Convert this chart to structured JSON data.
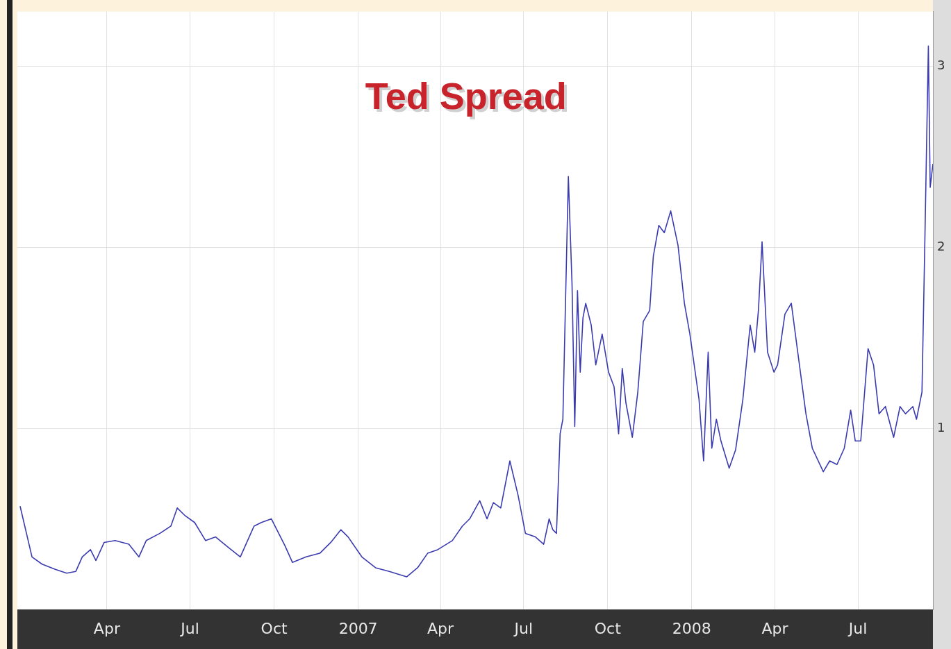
{
  "chart_data": {
    "type": "line",
    "title": "Ted Spread",
    "x": [
      "2005-12-27",
      "2006-01-09",
      "2006-01-20",
      "2006-02-04",
      "2006-02-16",
      "2006-02-26",
      "2006-03-05",
      "2006-03-14",
      "2006-03-20",
      "2006-03-29",
      "2006-04-10",
      "2006-04-25",
      "2006-05-06",
      "2006-05-14",
      "2006-05-29",
      "2006-06-10",
      "2006-06-17",
      "2006-06-25",
      "2006-07-06",
      "2006-07-18",
      "2006-07-29",
      "2006-08-10",
      "2006-08-25",
      "2006-09-09",
      "2006-09-17",
      "2006-09-28",
      "2006-10-13",
      "2006-10-21",
      "2006-11-05",
      "2006-11-20",
      "2006-12-02",
      "2006-12-13",
      "2006-12-21",
      "2007-01-05",
      "2007-01-20",
      "2007-02-04",
      "2007-02-23",
      "2007-03-07",
      "2007-03-18",
      "2007-03-29",
      "2007-04-14",
      "2007-04-25",
      "2007-05-03",
      "2007-05-14",
      "2007-05-22",
      "2007-05-29",
      "2007-06-06",
      "2007-06-16",
      "2007-06-25",
      "2007-07-03",
      "2007-07-14",
      "2007-07-23",
      "2007-07-29",
      "2007-08-02",
      "2007-08-06",
      "2007-08-10",
      "2007-08-13",
      "2007-08-19",
      "2007-08-23",
      "2007-08-26",
      "2007-08-29",
      "2007-09-01",
      "2007-09-04",
      "2007-09-07",
      "2007-09-13",
      "2007-09-18",
      "2007-09-25",
      "2007-10-02",
      "2007-10-08",
      "2007-10-13",
      "2007-10-17",
      "2007-10-21",
      "2007-10-28",
      "2007-11-03",
      "2007-11-09",
      "2007-11-16",
      "2007-11-20",
      "2007-11-26",
      "2007-12-02",
      "2007-12-09",
      "2007-12-17",
      "2007-12-24",
      "2007-12-30",
      "2008-01-09",
      "2008-01-14",
      "2008-01-19",
      "2008-01-23",
      "2008-01-28",
      "2008-02-02",
      "2008-02-11",
      "2008-02-18",
      "2008-02-26",
      "2008-03-05",
      "2008-03-10",
      "2008-03-14",
      "2008-03-18",
      "2008-03-24",
      "2008-03-31",
      "2008-04-04",
      "2008-04-12",
      "2008-04-19",
      "2008-04-25",
      "2008-05-05",
      "2008-05-12",
      "2008-05-24",
      "2008-05-31",
      "2008-06-08",
      "2008-06-16",
      "2008-06-23",
      "2008-06-28",
      "2008-07-04",
      "2008-07-12",
      "2008-07-18",
      "2008-07-24",
      "2008-07-31",
      "2008-08-09",
      "2008-08-16",
      "2008-08-22",
      "2008-08-30",
      "2008-09-03",
      "2008-09-09",
      "2008-09-12",
      "2008-09-16",
      "2008-09-18",
      "2008-09-21"
    ],
    "series": [
      {
        "color": "#3b3bb0",
        "values": [
          0.57,
          0.29,
          0.25,
          0.22,
          0.2,
          0.21,
          0.29,
          0.33,
          0.27,
          0.37,
          0.38,
          0.36,
          0.29,
          0.38,
          0.42,
          0.46,
          0.56,
          0.52,
          0.48,
          0.38,
          0.4,
          0.35,
          0.29,
          0.46,
          0.48,
          0.5,
          0.35,
          0.26,
          0.29,
          0.31,
          0.37,
          0.44,
          0.4,
          0.29,
          0.23,
          0.21,
          0.18,
          0.23,
          0.31,
          0.33,
          0.38,
          0.46,
          0.5,
          0.6,
          0.5,
          0.59,
          0.56,
          0.82,
          0.63,
          0.42,
          0.4,
          0.36,
          0.5,
          0.44,
          0.42,
          0.97,
          1.05,
          2.39,
          1.8,
          1.01,
          1.76,
          1.31,
          1.61,
          1.69,
          1.57,
          1.35,
          1.52,
          1.31,
          1.23,
          0.97,
          1.33,
          1.14,
          0.95,
          1.2,
          1.59,
          1.65,
          1.95,
          2.12,
          2.08,
          2.2,
          2.01,
          1.69,
          1.52,
          1.16,
          0.82,
          1.42,
          0.89,
          1.05,
          0.93,
          0.78,
          0.88,
          1.16,
          1.57,
          1.42,
          1.65,
          2.03,
          1.42,
          1.31,
          1.35,
          1.63,
          1.69,
          1.46,
          1.08,
          0.89,
          0.76,
          0.82,
          0.8,
          0.89,
          1.1,
          0.93,
          0.93,
          1.44,
          1.35,
          1.08,
          1.12,
          0.95,
          1.12,
          1.08,
          1.12,
          1.05,
          1.2,
          1.99,
          3.11,
          2.33,
          2.46
        ]
      }
    ],
    "xlim": [
      "2005-12-24",
      "2008-09-21"
    ],
    "xticks": [
      {
        "value": "2006-04-01",
        "label": "Apr"
      },
      {
        "value": "2006-07-01",
        "label": "Jul"
      },
      {
        "value": "2006-10-01",
        "label": "Oct"
      },
      {
        "value": "2007-01-01",
        "label": "2007"
      },
      {
        "value": "2007-04-01",
        "label": "Apr"
      },
      {
        "value": "2007-07-01",
        "label": "Jul"
      },
      {
        "value": "2007-10-01",
        "label": "Oct"
      },
      {
        "value": "2008-01-01",
        "label": "2008"
      },
      {
        "value": "2008-04-01",
        "label": "Apr"
      },
      {
        "value": "2008-07-01",
        "label": "Jul"
      }
    ],
    "ylim": [
      0,
      3.3
    ],
    "yticks": [
      1,
      2,
      3
    ],
    "grid": true,
    "legend": false,
    "marker": "none",
    "line_style": "solid"
  }
}
